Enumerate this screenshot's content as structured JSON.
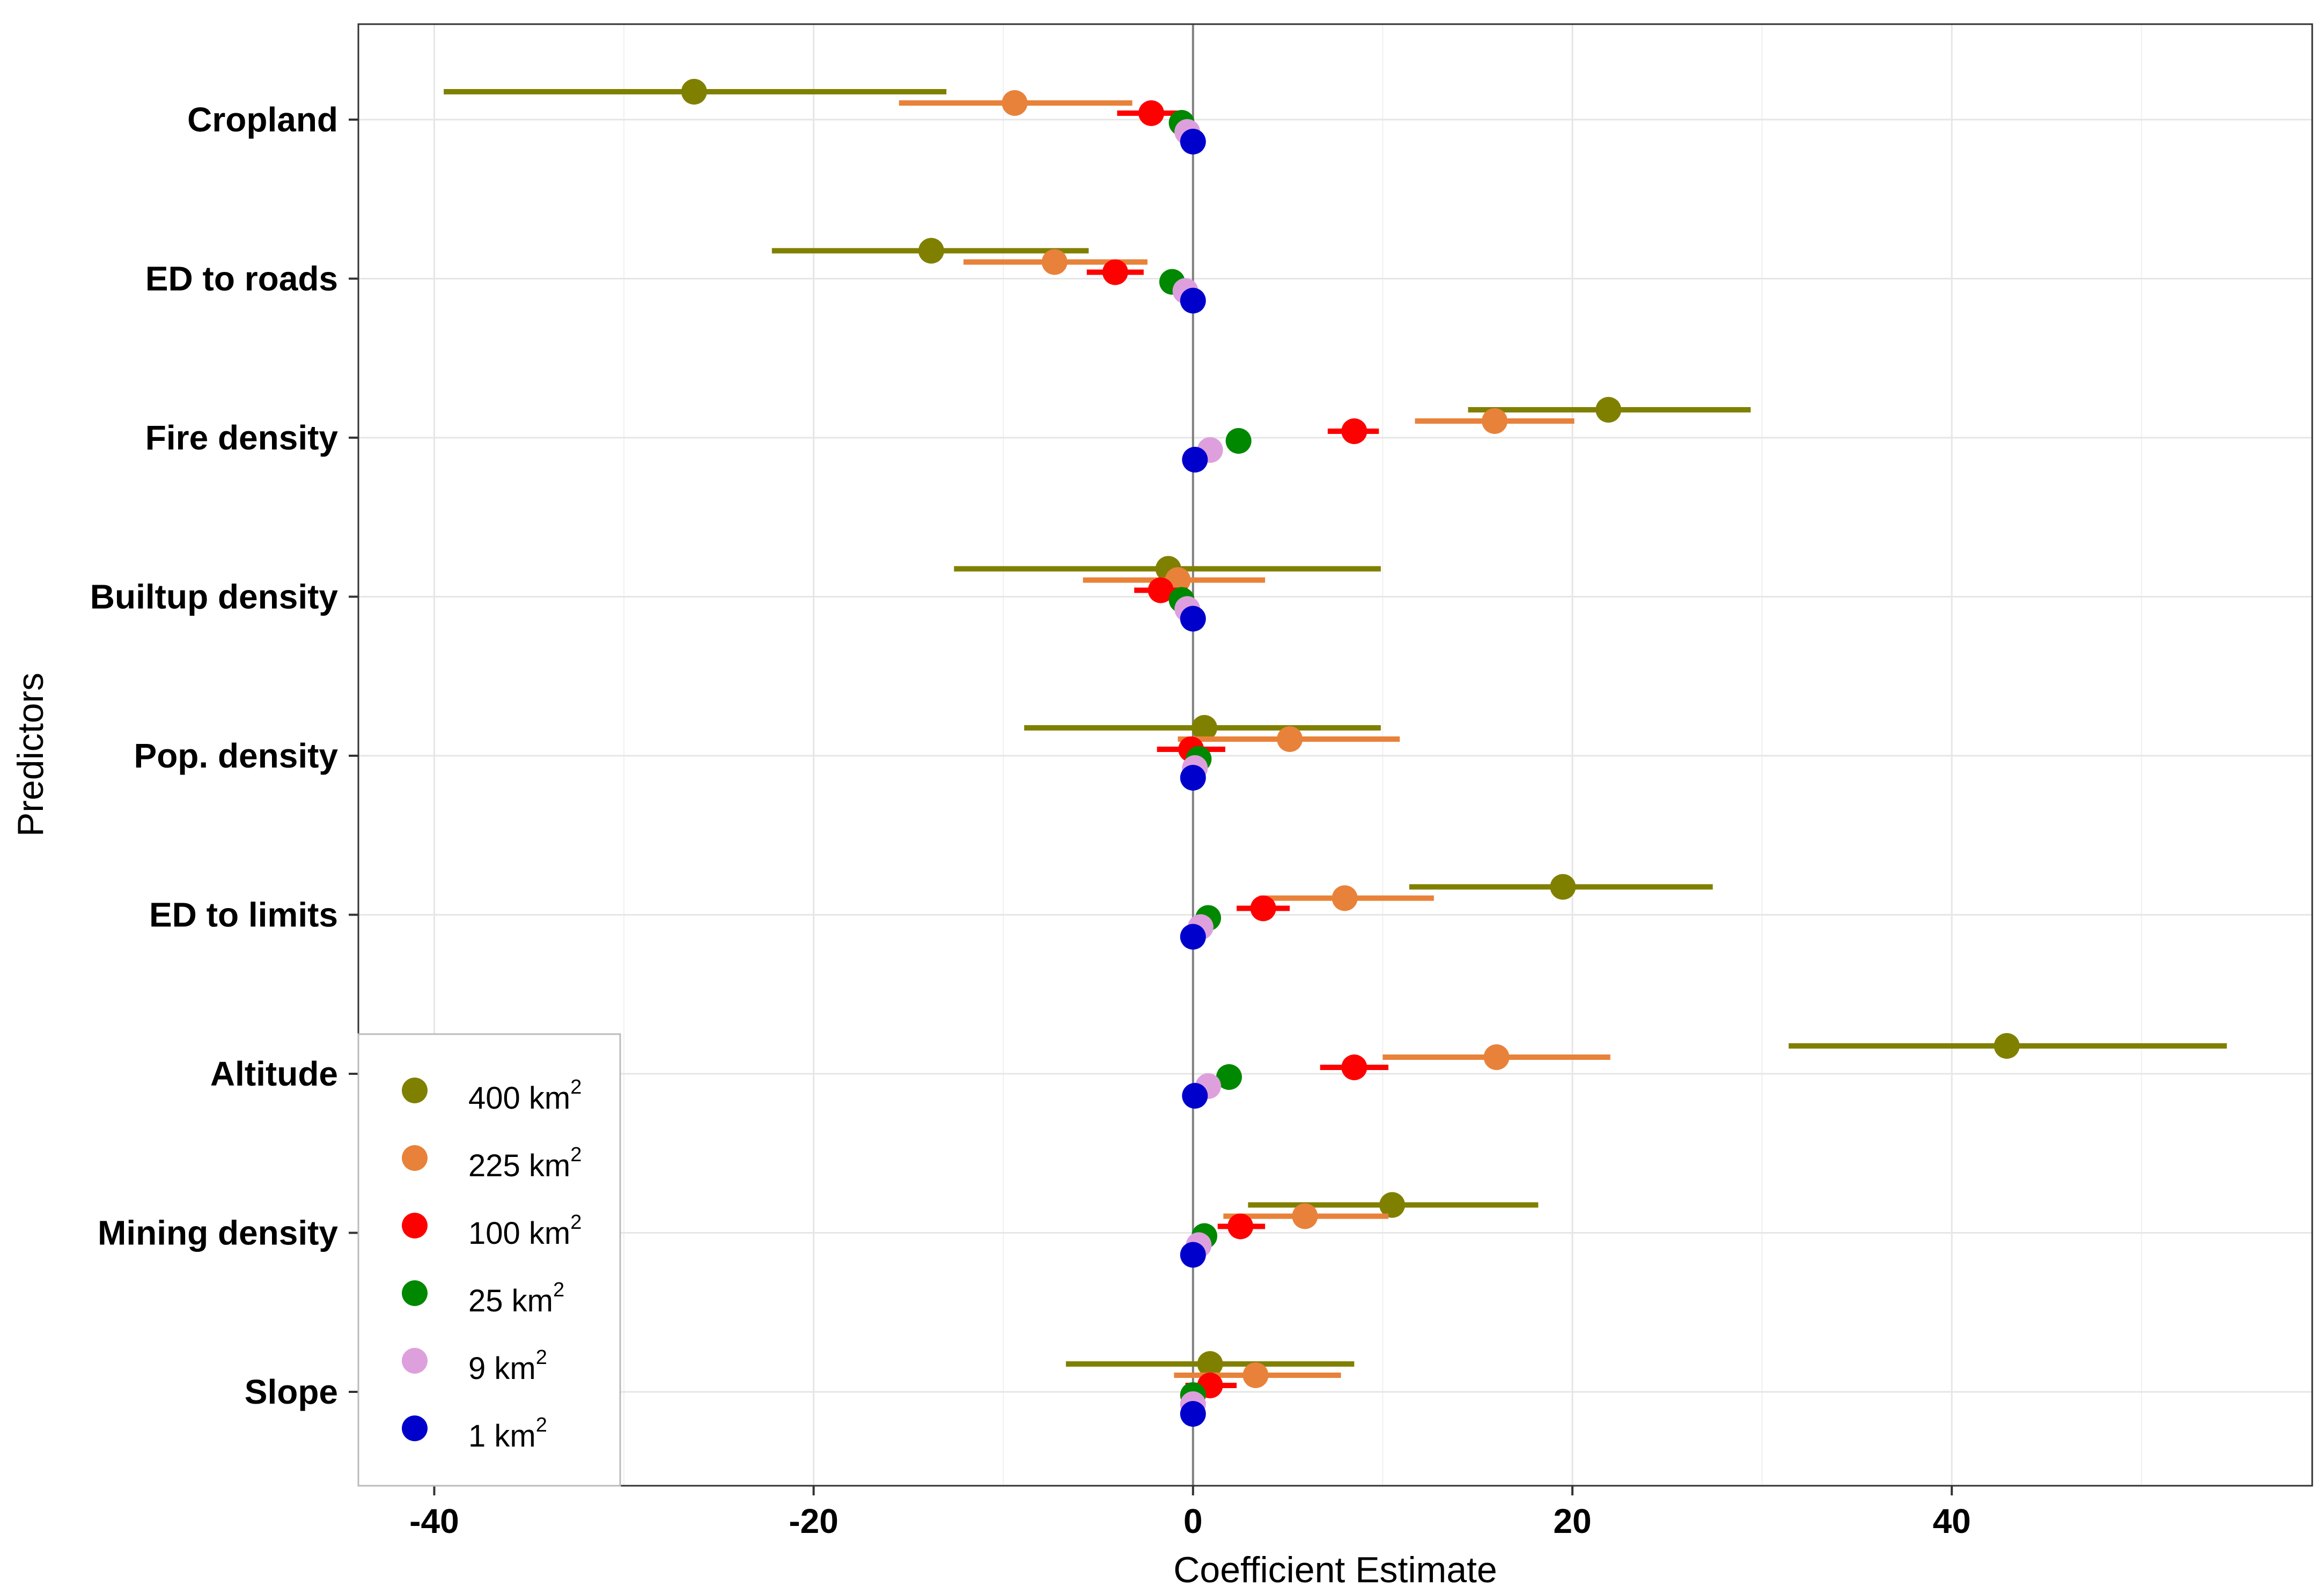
{
  "chart_data": {
    "type": "scatter",
    "subtype": "coefficient-plot-with-intervals",
    "title": "",
    "xlabel": "Coefficient Estimate",
    "ylabel": "Predictors",
    "xlim": [
      -44,
      59
    ],
    "x_ticks": [
      -40,
      -20,
      0,
      20,
      40
    ],
    "x_tick_labels": [
      "-40",
      "-20",
      "0",
      "20",
      "40"
    ],
    "grid": true,
    "reference_line_x": 0,
    "categories": [
      "Cropland",
      "ED to roads",
      "Fire density",
      "Builtup density",
      "Pop. density",
      "ED to limits",
      "Altitude",
      "Mining density",
      "Slope"
    ],
    "legend": {
      "position": "bottom-left",
      "items": [
        {
          "label": "400 km",
          "sup": "2"
        },
        {
          "label": "225 km",
          "sup": "2"
        },
        {
          "label": "100 km",
          "sup": "2"
        },
        {
          "label": "25 km",
          "sup": "2"
        },
        {
          "label": "9 km",
          "sup": "2"
        },
        {
          "label": "1 km",
          "sup": "2"
        }
      ]
    },
    "series": [
      {
        "name": "400 km2",
        "color": "#808000",
        "estimates": [
          -26.3,
          -13.8,
          21.9,
          -1.3,
          0.6,
          19.5,
          42.9,
          10.5,
          0.9
        ],
        "lower": [
          -39.5,
          -22.2,
          14.5,
          -12.6,
          -8.9,
          11.4,
          31.4,
          2.9,
          -6.7
        ],
        "upper": [
          -13.0,
          -5.5,
          29.4,
          9.9,
          9.9,
          27.4,
          54.5,
          18.2,
          8.5
        ]
      },
      {
        "name": "225 km2",
        "color": "#E8823A",
        "estimates": [
          -9.4,
          -7.3,
          15.9,
          -0.8,
          5.1,
          8.0,
          16.0,
          5.9,
          3.3
        ],
        "lower": [
          -15.5,
          -12.1,
          11.7,
          -5.8,
          -0.8,
          3.5,
          10.0,
          1.6,
          -1.0
        ],
        "upper": [
          -3.2,
          -2.4,
          20.1,
          3.8,
          10.9,
          12.7,
          22.0,
          10.3,
          7.8
        ]
      },
      {
        "name": "100 km2",
        "color": "#FF0000",
        "estimates": [
          -2.2,
          -4.1,
          8.5,
          -1.7,
          -0.1,
          3.7,
          8.5,
          2.5,
          0.9
        ],
        "lower": [
          -4.0,
          -5.6,
          7.1,
          -3.1,
          -1.9,
          2.3,
          6.7,
          1.3,
          -0.4
        ],
        "upper": [
          -0.4,
          -2.6,
          9.8,
          -0.3,
          1.7,
          5.1,
          10.3,
          3.8,
          2.3
        ]
      },
      {
        "name": "25 km2",
        "color": "#008800",
        "estimates": [
          -0.6,
          -1.1,
          2.4,
          -0.6,
          0.3,
          0.8,
          1.9,
          0.6,
          0.0
        ],
        "lower": [
          -1.0,
          -1.5,
          2.0,
          -1.0,
          -0.1,
          0.4,
          1.5,
          0.2,
          -0.4
        ],
        "upper": [
          -0.2,
          -0.7,
          2.8,
          -0.2,
          0.7,
          1.2,
          2.3,
          1.0,
          0.4
        ]
      },
      {
        "name": "9 km2",
        "color": "#DDA0DD",
        "estimates": [
          -0.3,
          -0.4,
          0.9,
          -0.3,
          0.1,
          0.4,
          0.8,
          0.3,
          0.0
        ],
        "lower": [
          -0.5,
          -0.6,
          0.7,
          -0.5,
          -0.1,
          0.2,
          0.6,
          0.1,
          -0.2
        ],
        "upper": [
          -0.1,
          -0.2,
          1.1,
          -0.1,
          0.3,
          0.6,
          1.0,
          0.5,
          0.2
        ]
      },
      {
        "name": "1 km2",
        "color": "#0000CC",
        "estimates": [
          0.0,
          0.0,
          0.1,
          0.0,
          0.0,
          0.0,
          0.1,
          0.0,
          0.0
        ],
        "lower": [
          -0.1,
          -0.1,
          0.0,
          -0.1,
          -0.1,
          -0.1,
          0.0,
          -0.1,
          -0.1
        ],
        "upper": [
          0.1,
          0.1,
          0.2,
          0.1,
          0.1,
          0.1,
          0.2,
          0.1,
          0.1
        ]
      }
    ]
  }
}
